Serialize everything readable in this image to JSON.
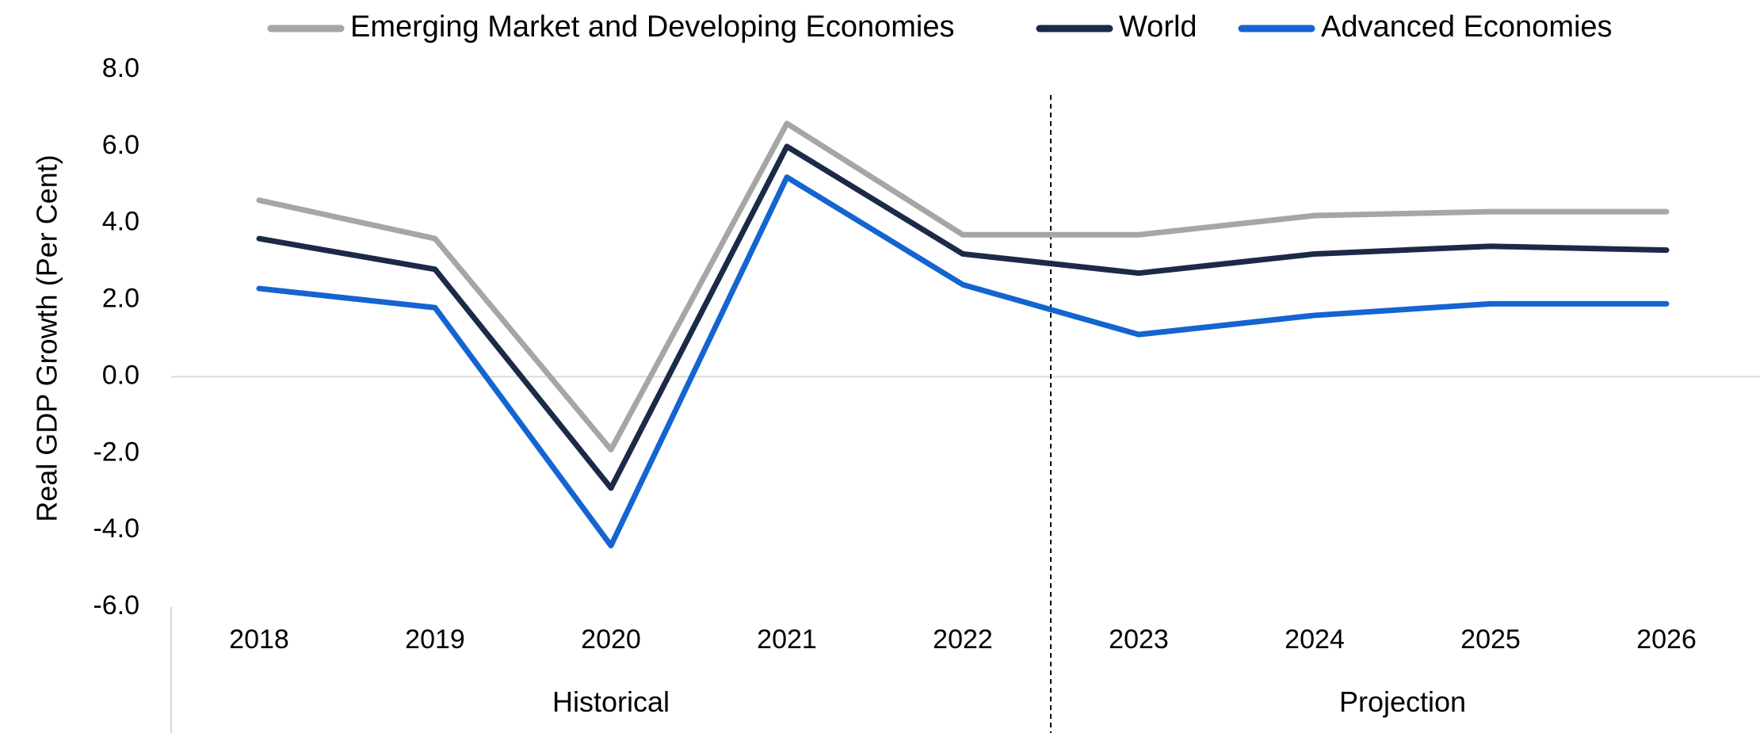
{
  "chart_data": {
    "type": "line",
    "title": "",
    "xlabel": "",
    "ylabel": "Real GDP Growth (Per Cent)",
    "categories": [
      "2018",
      "2019",
      "2020",
      "2021",
      "2022",
      "2023",
      "2024",
      "2025",
      "2026"
    ],
    "ylim": [
      -6.0,
      8.0
    ],
    "yticks": [
      "8.0",
      "6.0",
      "4.0",
      "2.0",
      "0.0",
      "-2.0",
      "-4.0",
      "-6.0"
    ],
    "ytick_values": [
      8,
      6,
      4,
      2,
      0,
      -2,
      -4,
      -6
    ],
    "grid": false,
    "legend_position": "top",
    "groups": [
      {
        "label": "Historical",
        "start": "2018",
        "end": "2022"
      },
      {
        "label": "Projection",
        "start": "2023",
        "end": "2026"
      }
    ],
    "series": [
      {
        "name": "Emerging Market and Developing Economies",
        "color": "#a6a6a6",
        "values": [
          4.6,
          3.6,
          -1.9,
          6.6,
          3.7,
          3.7,
          4.2,
          4.3,
          4.3
        ]
      },
      {
        "name": "World",
        "color": "#1c2a48",
        "values": [
          3.6,
          2.8,
          -2.9,
          6.0,
          3.2,
          2.7,
          3.2,
          3.4,
          3.3
        ]
      },
      {
        "name": "Advanced Economies",
        "color": "#1464d2",
        "values": [
          2.3,
          1.8,
          -4.4,
          5.2,
          2.4,
          1.1,
          1.6,
          1.9,
          1.9
        ]
      }
    ]
  }
}
